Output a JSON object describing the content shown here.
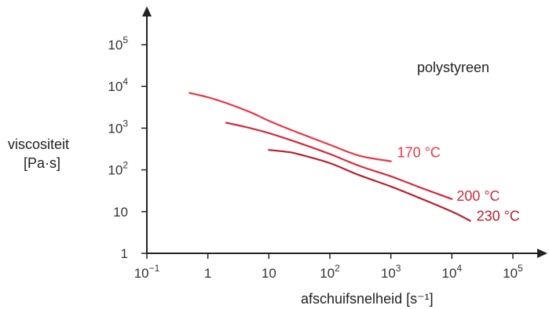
{
  "chart_data": {
    "type": "line",
    "title": "",
    "annotation": "polystyreen",
    "ylabel_line1": "viscositeit",
    "ylabel_line2": "[Pa·s]",
    "xlabel": "afschuifsnelheid [s⁻¹]",
    "x_scale": "log",
    "y_scale": "log",
    "xlim": [
      0.1,
      100000
    ],
    "ylim": [
      1,
      100000
    ],
    "grid": false,
    "legend": "none",
    "x_ticks": [
      {
        "value": 0.1,
        "base": "10",
        "exp": "−1"
      },
      {
        "value": 1,
        "base": "1",
        "exp": ""
      },
      {
        "value": 10,
        "base": "10",
        "exp": ""
      },
      {
        "value": 100,
        "base": "10",
        "exp": "2"
      },
      {
        "value": 1000,
        "base": "10",
        "exp": "3"
      },
      {
        "value": 10000,
        "base": "10",
        "exp": "4"
      },
      {
        "value": 100000,
        "base": "10",
        "exp": "5"
      }
    ],
    "y_ticks": [
      {
        "value": 1,
        "base": "1",
        "exp": ""
      },
      {
        "value": 10,
        "base": "10",
        "exp": ""
      },
      {
        "value": 100,
        "base": "10",
        "exp": "2"
      },
      {
        "value": 1000,
        "base": "10",
        "exp": "3"
      },
      {
        "value": 10000,
        "base": "10",
        "exp": "4"
      },
      {
        "value": 100000,
        "base": "10",
        "exp": "5"
      }
    ],
    "series": [
      {
        "label": "170 °C",
        "color": "#ee3344",
        "x": [
          0.5,
          1,
          2,
          5,
          10,
          30,
          100,
          300,
          1000
        ],
        "y": [
          7000,
          5500,
          4000,
          2400,
          1500,
          780,
          400,
          220,
          160
        ]
      },
      {
        "label": "200 °C",
        "color": "#d42a3c",
        "x": [
          2,
          5,
          10,
          30,
          100,
          300,
          1000,
          3000,
          10000
        ],
        "y": [
          1350,
          1000,
          760,
          450,
          240,
          125,
          70,
          38,
          20
        ]
      },
      {
        "label": "230 °C",
        "color": "#b82030",
        "x": [
          10,
          20,
          30,
          100,
          300,
          1000,
          3000,
          10000,
          20000
        ],
        "y": [
          300,
          270,
          240,
          145,
          75,
          40,
          21,
          10,
          6
        ]
      }
    ]
  }
}
